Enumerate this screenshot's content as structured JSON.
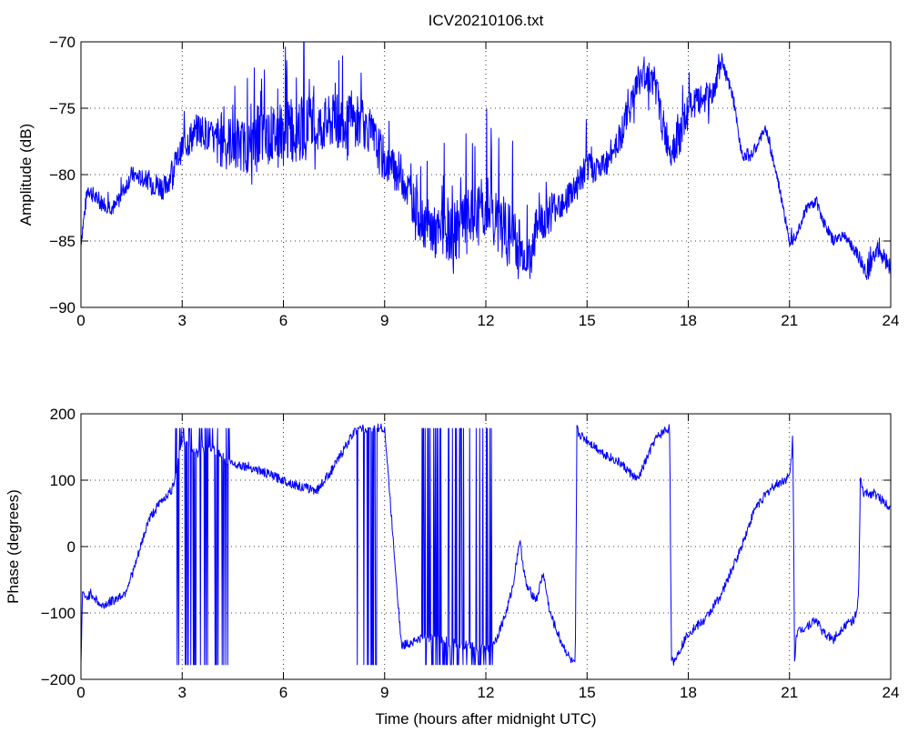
{
  "title": "ICV20210106.txt",
  "chart_data": [
    {
      "type": "line",
      "ylabel": "Amplitude (dB)",
      "xlabel": "",
      "xlim": [
        0,
        24
      ],
      "ylim": [
        -90,
        -70
      ],
      "xticks": [
        0,
        3,
        6,
        9,
        12,
        15,
        18,
        21,
        24
      ],
      "yticks": [
        -90,
        -85,
        -80,
        -75,
        -70
      ],
      "xtick_labels": [
        "0",
        "3",
        "6",
        "9",
        "12",
        "15",
        "18",
        "21",
        "24"
      ],
      "ytick_labels": [
        "−90",
        "−85",
        "−80",
        "−75",
        "−70"
      ],
      "grid": true,
      "series": [
        {
          "color": "#0000ff",
          "noise": [
            0.8,
            0.8,
            1.2,
            1.6,
            2.5,
            2.8,
            3.0,
            2.6,
            2.2,
            2.0,
            2.5,
            3.0,
            3.2,
            2.0,
            1.6,
            1.4,
            1.6,
            1.8,
            1.4,
            0.6,
            0.5,
            0.5,
            0.5,
            0.8,
            0.9,
            0.8,
            0.6
          ],
          "x": [
            0,
            0.2,
            0.5,
            1.0,
            1.5,
            2.0,
            2.5,
            3.0,
            3.5,
            4.0,
            4.5,
            5.0,
            5.5,
            6.0,
            6.5,
            7.0,
            7.5,
            8.0,
            8.5,
            9.0,
            9.5,
            10.0,
            10.5,
            11.0,
            11.5,
            12.0,
            12.5,
            13.0,
            13.3,
            13.5,
            14.0,
            14.5,
            15.0,
            15.5,
            16.0,
            16.5,
            16.8,
            17.0,
            17.3,
            17.5,
            17.8,
            18.0,
            18.3,
            18.7,
            19.0,
            19.3,
            19.6,
            19.9,
            20.1,
            20.3,
            20.7,
            21.0,
            21.2,
            21.5,
            21.8,
            22.0,
            22.3,
            22.6,
            23.0,
            23.3,
            23.6,
            24.0
          ],
          "y": [
            -85,
            -81,
            -82,
            -82.5,
            -80,
            -80.5,
            -81,
            -78,
            -76.5,
            -77.5,
            -77.5,
            -78,
            -77,
            -77,
            -76.5,
            -76.5,
            -76,
            -76,
            -76.5,
            -79,
            -80,
            -83,
            -84.5,
            -84.5,
            -83.5,
            -82.5,
            -84,
            -85.5,
            -86.5,
            -84,
            -82.5,
            -81.5,
            -79.5,
            -79.5,
            -77,
            -73,
            -72.5,
            -73,
            -77,
            -78,
            -77,
            -75,
            -74.5,
            -74,
            -71.5,
            -74,
            -78.5,
            -78.5,
            -77.5,
            -76.5,
            -81,
            -85,
            -84.5,
            -82.5,
            -82,
            -83.5,
            -85,
            -84.5,
            -86,
            -87.5,
            -85.5,
            -87
          ]
        }
      ]
    },
    {
      "type": "line",
      "ylabel": "Phase (degrees)",
      "xlabel": "Time (hours after midnight UTC)",
      "xlim": [
        0,
        24
      ],
      "ylim": [
        -200,
        200
      ],
      "xticks": [
        0,
        3,
        6,
        9,
        12,
        15,
        18,
        21,
        24
      ],
      "yticks": [
        -200,
        -100,
        0,
        100,
        200
      ],
      "xtick_labels": [
        "0",
        "3",
        "6",
        "9",
        "12",
        "15",
        "18",
        "21",
        "24"
      ],
      "ytick_labels": [
        "−200",
        "−100",
        "0",
        "100",
        "200"
      ],
      "grid": true,
      "series": [
        {
          "color": "#0000ff",
          "x": [
            0,
            0.05,
            0.1,
            0.3,
            0.6,
            1.0,
            1.3,
            1.6,
            2.0,
            2.4,
            2.7,
            2.85,
            3.0,
            3.2,
            3.5,
            3.8,
            4.1,
            4.3,
            4.5,
            5.0,
            5.5,
            6.0,
            6.5,
            7.0,
            7.5,
            8.0,
            8.3,
            8.6,
            9.0,
            9.5,
            10.0,
            10.5,
            11.0,
            11.5,
            12.0,
            12.3,
            12.6,
            12.8,
            13.0,
            13.2,
            13.5,
            13.7,
            13.9,
            14.2,
            14.5,
            14.65,
            14.7,
            14.75,
            15.0,
            15.5,
            16.0,
            16.5,
            17.0,
            17.3,
            17.45,
            17.5,
            17.6,
            18.0,
            18.5,
            19.0,
            19.5,
            20.0,
            20.5,
            21.0,
            21.05,
            21.1,
            21.15,
            21.2,
            21.5,
            21.8,
            22.0,
            22.3,
            22.6,
            22.9,
            23.0,
            23.05,
            23.1,
            23.2,
            23.5,
            24.0
          ],
          "y": [
            -175,
            -60,
            -80,
            -70,
            -90,
            -80,
            -70,
            -30,
            40,
            70,
            85,
            120,
            160,
            150,
            140,
            150,
            140,
            130,
            125,
            120,
            110,
            100,
            90,
            85,
            120,
            165,
            178,
            178,
            178,
            -150,
            -140,
            -135,
            -145,
            -150,
            -155,
            -140,
            -100,
            -60,
            10,
            -60,
            -80,
            -40,
            -100,
            -140,
            -170,
            -180,
            178,
            170,
            160,
            140,
            125,
            100,
            160,
            175,
            178,
            -175,
            -170,
            -130,
            -110,
            -70,
            -10,
            60,
            90,
            105,
            130,
            170,
            -175,
            -130,
            -120,
            -110,
            -130,
            -140,
            -120,
            -110,
            -100,
            -70,
            100,
            80,
            80,
            60
          ]
        }
      ],
      "wrap_bursts": [
        [
          2.8,
          4.4
        ],
        [
          8.1,
          8.9
        ],
        [
          10.1,
          12.2
        ]
      ]
    }
  ]
}
